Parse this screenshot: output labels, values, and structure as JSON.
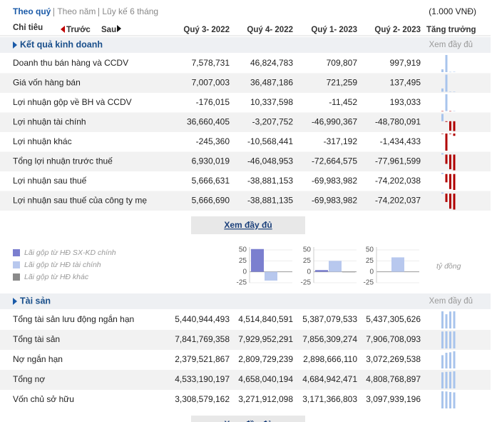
{
  "tabs": [
    "Theo quý",
    "Theo năm",
    "Lũy kế 6 tháng"
  ],
  "unit": "(1.000 VNĐ)",
  "header": {
    "label": "Chỉ tiêu",
    "prev": "Trước",
    "next": "Sau",
    "columns": [
      "Quý 3- 2022",
      "Quý 4- 2022",
      "Quý 1- 2023",
      "Quý 2- 2023"
    ],
    "growth": "Tăng trưởng"
  },
  "sections": [
    {
      "title": "Kết quả kinh doanh",
      "more": "Xem đầy đủ",
      "button": "Xem đầy đủ",
      "rows": [
        {
          "label": "Doanh thu bán hàng và CCDV",
          "values": [
            "7,578,731",
            "46,824,783",
            "709,807",
            "997,919"
          ]
        },
        {
          "label": "Giá vốn hàng bán",
          "values": [
            "7,007,003",
            "36,487,186",
            "721,259",
            "137,495"
          ]
        },
        {
          "label": "Lợi nhuận gộp về BH và CCDV",
          "values": [
            "-176,015",
            "10,337,598",
            "-11,452",
            "193,033"
          ]
        },
        {
          "label": "Lợi nhuận tài chính",
          "values": [
            "36,660,405",
            "-3,207,752",
            "-46,990,367",
            "-48,780,091"
          ]
        },
        {
          "label": "Lợi nhuận khác",
          "values": [
            "-245,360",
            "-10,568,441",
            "-317,192",
            "-1,434,433"
          ]
        },
        {
          "label": "Tổng lợi nhuận trước thuế",
          "values": [
            "6,930,019",
            "-46,048,953",
            "-72,664,575",
            "-77,961,599"
          ]
        },
        {
          "label": "Lợi nhuận sau thuế",
          "values": [
            "5,666,631",
            "-38,881,153",
            "-69,983,982",
            "-74,202,038"
          ]
        },
        {
          "label": "Lợi nhuận sau thuế của công ty mẹ",
          "values": [
            "5,666,690",
            "-38,881,135",
            "-69,983,982",
            "-74,202,037"
          ]
        }
      ]
    },
    {
      "title": "Tài sản",
      "more": "Xem đầy đủ",
      "button": "Xem đầy đủ",
      "rows": [
        {
          "label": "Tổng tài sản lưu động ngắn hạn",
          "values": [
            "5,440,944,493",
            "4,514,840,591",
            "5,387,079,533",
            "5,437,305,626"
          ]
        },
        {
          "label": "Tổng tài sản",
          "values": [
            "7,841,769,358",
            "7,929,952,291",
            "7,856,309,274",
            "7,906,708,093"
          ]
        },
        {
          "label": "Nợ ngắn hạn",
          "values": [
            "2,379,521,867",
            "2,809,729,239",
            "2,898,666,110",
            "3,072,269,538"
          ]
        },
        {
          "label": "Tổng nợ",
          "values": [
            "4,533,190,197",
            "4,658,040,194",
            "4,684,942,471",
            "4,808,768,897"
          ]
        },
        {
          "label": "Vốn chủ sở hữu",
          "values": [
            "3,308,579,162",
            "3,271,912,098",
            "3,171,366,803",
            "3,097,939,196"
          ]
        }
      ]
    }
  ],
  "mini_charts": {
    "type": "bar",
    "legend": [
      {
        "name": "Lãi gộp từ HĐ SX-KD chính",
        "color": "#7b7fcf"
      },
      {
        "name": "Lãi gộp từ HĐ tài chính",
        "color": "#b8c8ee"
      },
      {
        "name": "Lãi gộp từ HĐ khác",
        "color": "#8a8a8a"
      }
    ],
    "unit": "tỷ đồng",
    "ylim": [
      -25,
      50
    ],
    "yticks": [
      50,
      25,
      0,
      -25
    ],
    "charts": [
      {
        "values": [
          52,
          -20,
          0
        ]
      },
      {
        "values": [
          4,
          25,
          -1
        ]
      },
      {
        "values": [
          0,
          33,
          0
        ]
      }
    ]
  }
}
